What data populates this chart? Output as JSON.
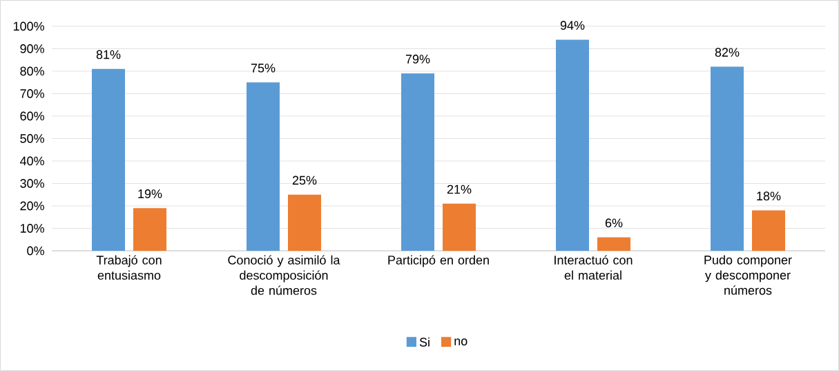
{
  "chart_data": {
    "type": "bar",
    "categories": [
      "Trabajó con entusiasmo",
      "Conoció y asimiló la descomposición de números",
      "Participó en orden",
      "Interactuó con el material",
      "Pudo componer y descomponer números"
    ],
    "series": [
      {
        "name": "Si",
        "color": "#5b9bd5",
        "values": [
          81,
          75,
          79,
          94,
          82
        ],
        "value_labels": [
          "81%",
          "75%",
          "79%",
          "94%",
          "82%"
        ]
      },
      {
        "name": "no",
        "color": "#ed7d31",
        "values": [
          19,
          25,
          21,
          6,
          18
        ],
        "value_labels": [
          "19%",
          "25%",
          "21%",
          "6%",
          "18%"
        ]
      }
    ],
    "ylim": [
      0,
      100
    ],
    "yticks": [
      {
        "value": 0,
        "label": "0%"
      },
      {
        "value": 10,
        "label": "10%"
      },
      {
        "value": 20,
        "label": "20%"
      },
      {
        "value": 30,
        "label": "30%"
      },
      {
        "value": 40,
        "label": "40%"
      },
      {
        "value": 50,
        "label": "50%"
      },
      {
        "value": 60,
        "label": "60%"
      },
      {
        "value": 70,
        "label": "70%"
      },
      {
        "value": 80,
        "label": "80%"
      },
      {
        "value": 90,
        "label": "90%"
      },
      {
        "value": 100,
        "label": "100%"
      }
    ],
    "grid": "y",
    "legend": "bottom"
  }
}
